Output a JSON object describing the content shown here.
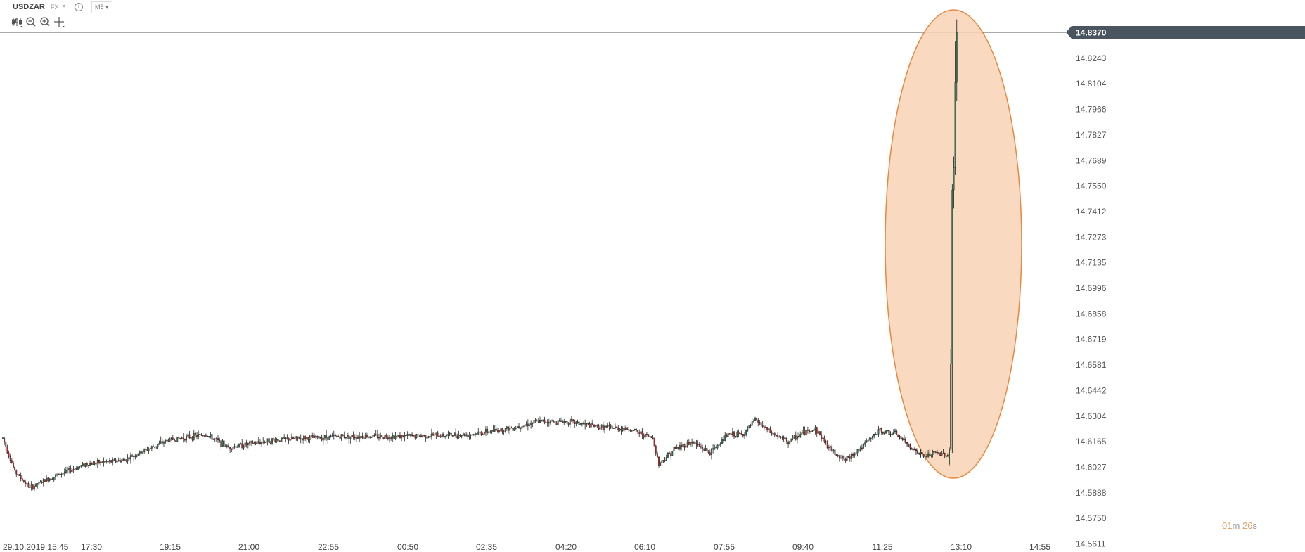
{
  "header": {
    "symbol": "USDZAR",
    "market": "FX",
    "info_icon": "info-icon",
    "timeframe": "M5",
    "tools": [
      "chart-type-icon",
      "zoom-out-icon",
      "zoom-in-icon",
      "crosshair-icon"
    ]
  },
  "colors": {
    "up": "#2e7d52",
    "down": "#cc2222",
    "highlight_fill": "#f8d3b5",
    "highlight_stroke": "#e8893f",
    "price_tag": "#4a5560"
  },
  "chart_data": {
    "type": "candlestick",
    "symbol": "USDZAR",
    "timeframe": "M5",
    "current_price": "14.8370",
    "y_ticks": [
      "14.8370",
      "14.8243",
      "14.8104",
      "14.7966",
      "14.7827",
      "14.7689",
      "14.7550",
      "14.7412",
      "14.7273",
      "14.7135",
      "14.6996",
      "14.6858",
      "14.6719",
      "14.6581",
      "14.6442",
      "14.6304",
      "14.6165",
      "14.6027",
      "14.5888",
      "14.5750",
      "14.5611"
    ],
    "ylim": [
      14.5611,
      14.837
    ],
    "x_ticks": [
      "29.10.2019 15:45",
      "17:30",
      "19:15",
      "21:00",
      "22:55",
      "00:50",
      "02:35",
      "04:20",
      "06:10",
      "07:55",
      "09:40",
      "11:25",
      "13:10",
      "14:55"
    ],
    "countdown": {
      "min": "01",
      "min_unit": "m",
      "sec": "26",
      "sec_unit": "s"
    },
    "highlight": "ellipse around final breakout candles",
    "anchors": [
      [
        0,
        14.618
      ],
      [
        8,
        14.6
      ],
      [
        18,
        14.591
      ],
      [
        30,
        14.596
      ],
      [
        55,
        14.604
      ],
      [
        80,
        14.606
      ],
      [
        110,
        14.617
      ],
      [
        135,
        14.62
      ],
      [
        150,
        14.613
      ],
      [
        180,
        14.617
      ],
      [
        225,
        14.619
      ],
      [
        265,
        14.619
      ],
      [
        310,
        14.62
      ],
      [
        335,
        14.623
      ],
      [
        356,
        14.627
      ],
      [
        376,
        14.627
      ],
      [
        396,
        14.624
      ],
      [
        416,
        14.623
      ],
      [
        432,
        14.618
      ],
      [
        436,
        14.604
      ],
      [
        446,
        14.612
      ],
      [
        458,
        14.616
      ],
      [
        470,
        14.61
      ],
      [
        482,
        14.62
      ],
      [
        492,
        14.62
      ],
      [
        500,
        14.628
      ],
      [
        510,
        14.621
      ],
      [
        522,
        14.616
      ],
      [
        532,
        14.621
      ],
      [
        540,
        14.623
      ],
      [
        550,
        14.612
      ],
      [
        560,
        14.606
      ],
      [
        572,
        14.614
      ],
      [
        582,
        14.622
      ],
      [
        594,
        14.62
      ],
      [
        602,
        14.614
      ],
      [
        612,
        14.608
      ],
      [
        620,
        14.61
      ],
      [
        628,
        14.609
      ]
    ]
  }
}
